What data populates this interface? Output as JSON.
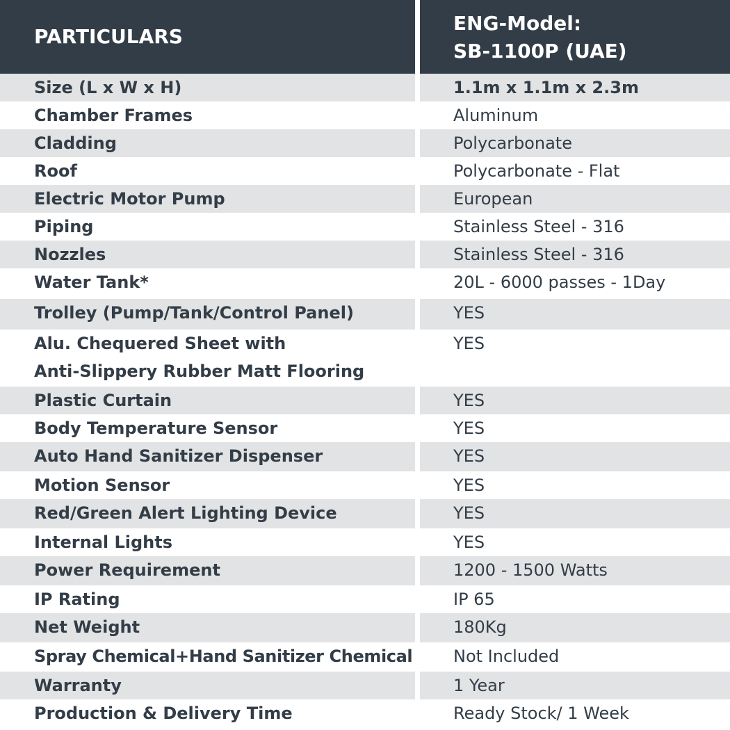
{
  "header": {
    "particulars": "PARTICULARS",
    "model_line1": "ENG-Model:",
    "model_line2": "SB-1100P (UAE)"
  },
  "rows": [
    {
      "label": "Size (L x W x H)",
      "value": "1.1m x 1.1m x 2.3m"
    },
    {
      "label": "Chamber Frames",
      "value": "Aluminum"
    },
    {
      "label": "Cladding",
      "value": "Polycarbonate"
    },
    {
      "label": "Roof",
      "value": "Polycarbonate - Flat"
    },
    {
      "label": "Electric Motor Pump",
      "value": "European"
    },
    {
      "label": "Piping",
      "value": "Stainless Steel - 316"
    },
    {
      "label": "Nozzles",
      "value": "Stainless Steel - 316"
    },
    {
      "label": "Water Tank*",
      "value": "20L - 6000 passes - 1Day"
    },
    {
      "label": "Trolley (Pump/Tank/Control Panel)",
      "value": "YES"
    },
    {
      "label": "Alu. Chequered Sheet with",
      "label2": "Anti-Slippery Rubber Matt Flooring",
      "value": "YES"
    },
    {
      "label": "Plastic Curtain",
      "value": "YES"
    },
    {
      "label": "Body Temperature Sensor",
      "value": "YES"
    },
    {
      "label": "Auto Hand Sanitizer Dispenser",
      "value": "YES"
    },
    {
      "label": "Motion Sensor",
      "value": "YES"
    },
    {
      "label": "Red/Green Alert Lighting Device",
      "value": "YES"
    },
    {
      "label": "Internal Lights",
      "value": "YES"
    },
    {
      "label": "Power Requirement",
      "value": "1200 - 1500 Watts"
    },
    {
      "label": "IP Rating",
      "value": "IP 65"
    },
    {
      "label": "Net Weight",
      "value": "180Kg"
    },
    {
      "label": "Spray Chemical+Hand Sanitizer Chemical",
      "value": "Not Included"
    },
    {
      "label": "Warranty",
      "value": "1 Year"
    },
    {
      "label": "Production & Delivery Time",
      "value": "Ready Stock/ 1 Week"
    }
  ]
}
